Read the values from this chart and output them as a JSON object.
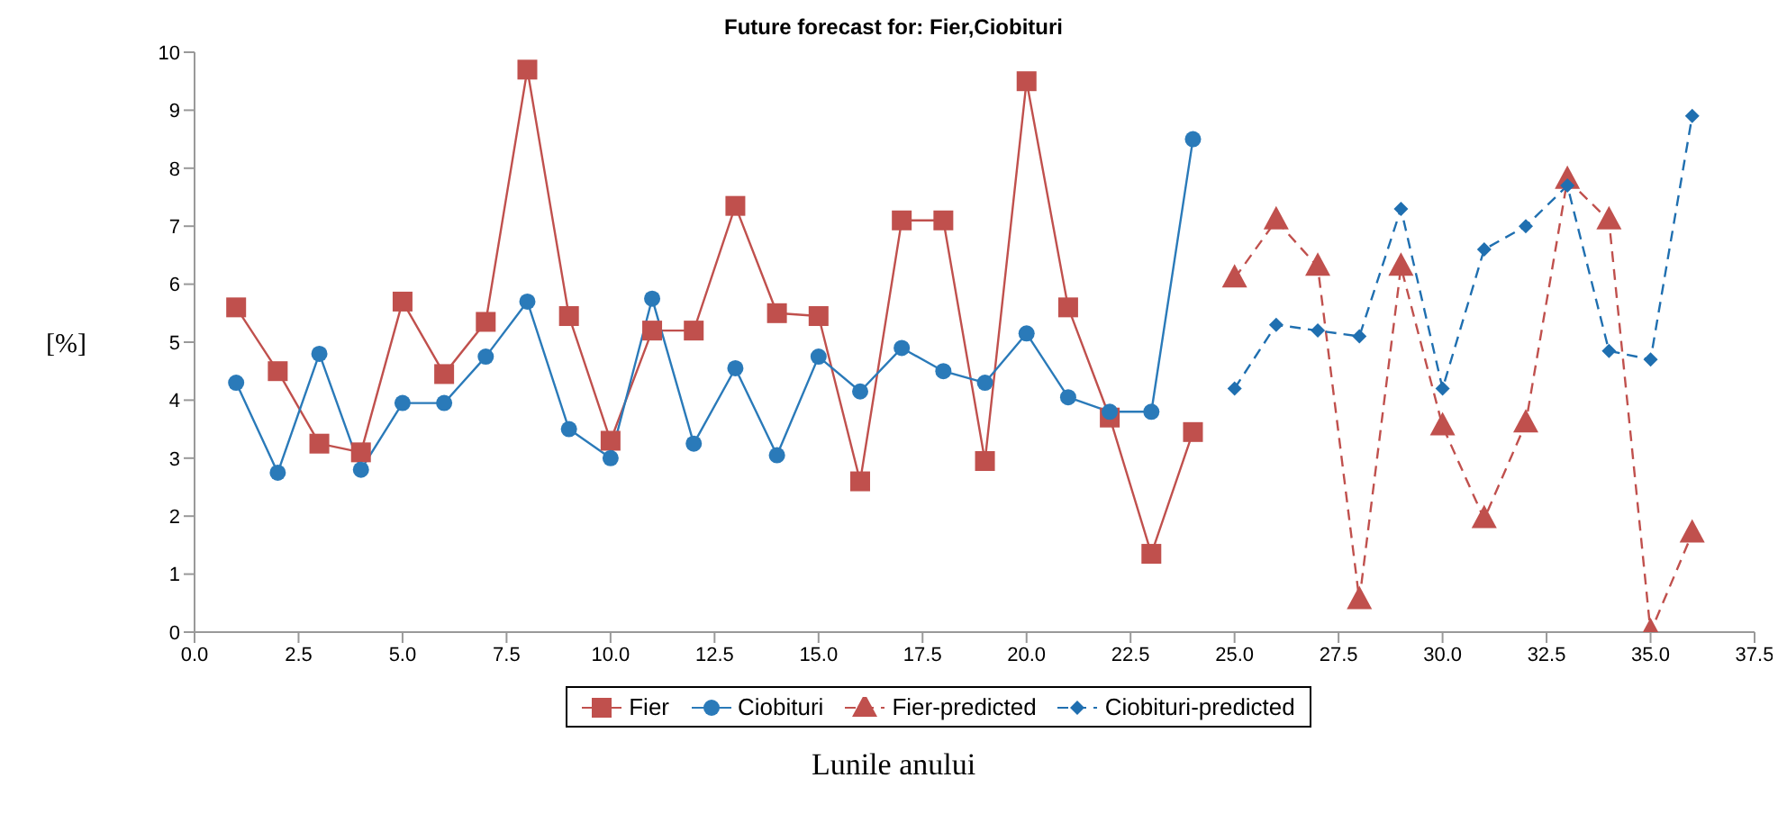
{
  "chart_data": {
    "type": "line",
    "title": "Future forecast for: Fier,Ciobituri",
    "xlabel": "Lunile anului",
    "ylabel": "[%]",
    "xlim": [
      0,
      37.5
    ],
    "xticks": [
      {
        "value": 0,
        "label": "0.0"
      },
      {
        "value": 2.5,
        "label": "2.5"
      },
      {
        "value": 5,
        "label": "5.0"
      },
      {
        "value": 7.5,
        "label": "7.5"
      },
      {
        "value": 10,
        "label": "10.0"
      },
      {
        "value": 12.5,
        "label": "12.5"
      },
      {
        "value": 15,
        "label": "15.0"
      },
      {
        "value": 17.5,
        "label": "17.5"
      },
      {
        "value": 20,
        "label": "20.0"
      },
      {
        "value": 22.5,
        "label": "22.5"
      },
      {
        "value": 25,
        "label": "25.0"
      },
      {
        "value": 27.5,
        "label": "27.5"
      },
      {
        "value": 30,
        "label": "30.0"
      },
      {
        "value": 32.5,
        "label": "32.5"
      },
      {
        "value": 35,
        "label": "35.0"
      },
      {
        "value": 37.5,
        "label": "37.5"
      }
    ],
    "ylim": [
      0,
      10
    ],
    "yticks": [
      0,
      1,
      2,
      3,
      4,
      5,
      6,
      7,
      8,
      9,
      10
    ],
    "grid": false,
    "legend": "bottom",
    "series": [
      {
        "name": "Fier",
        "color": "#c0504d",
        "marker": "square",
        "line_style": "solid",
        "x": [
          1,
          2,
          3,
          4,
          5,
          6,
          7,
          8,
          9,
          10,
          11,
          12,
          13,
          14,
          15,
          16,
          17,
          18,
          19,
          20,
          21,
          22,
          23,
          24
        ],
        "values": [
          5.6,
          4.5,
          3.25,
          3.1,
          5.7,
          4.45,
          5.35,
          9.7,
          5.45,
          3.3,
          5.2,
          5.2,
          7.35,
          5.5,
          5.45,
          2.6,
          7.1,
          7.1,
          2.95,
          9.5,
          5.6,
          3.7,
          1.35,
          3.45
        ]
      },
      {
        "name": "Ciobituri",
        "color": "#2a7ab9",
        "marker": "circle",
        "line_style": "solid",
        "x": [
          1,
          2,
          3,
          4,
          5,
          6,
          7,
          8,
          9,
          10,
          11,
          12,
          13,
          14,
          15,
          16,
          17,
          18,
          19,
          20,
          21,
          22,
          23,
          24
        ],
        "values": [
          4.3,
          2.75,
          4.8,
          2.8,
          3.95,
          3.95,
          4.75,
          5.7,
          3.5,
          3.0,
          5.75,
          3.25,
          4.55,
          3.05,
          4.75,
          4.15,
          4.9,
          4.5,
          4.3,
          5.15,
          4.05,
          3.8,
          3.8,
          8.5
        ]
      },
      {
        "name": "Fier-predicted",
        "color": "#c0504d",
        "marker": "triangle",
        "line_style": "dashed",
        "x": [
          25,
          26,
          27,
          28,
          29,
          30,
          31,
          32,
          33,
          34,
          35,
          36
        ],
        "values": [
          6.1,
          7.1,
          6.3,
          0.55,
          6.3,
          3.55,
          1.95,
          3.6,
          7.8,
          7.1,
          0,
          1.7
        ]
      },
      {
        "name": "Ciobituri-predicted",
        "color": "#1f6fb0",
        "marker": "diamond",
        "line_style": "dashed",
        "x": [
          25,
          26,
          27,
          28,
          29,
          30,
          31,
          32,
          33,
          34,
          35,
          36
        ],
        "values": [
          4.2,
          5.3,
          5.2,
          5.1,
          7.3,
          4.2,
          6.6,
          7.0,
          7.7,
          4.85,
          4.7,
          8.9
        ]
      }
    ]
  }
}
